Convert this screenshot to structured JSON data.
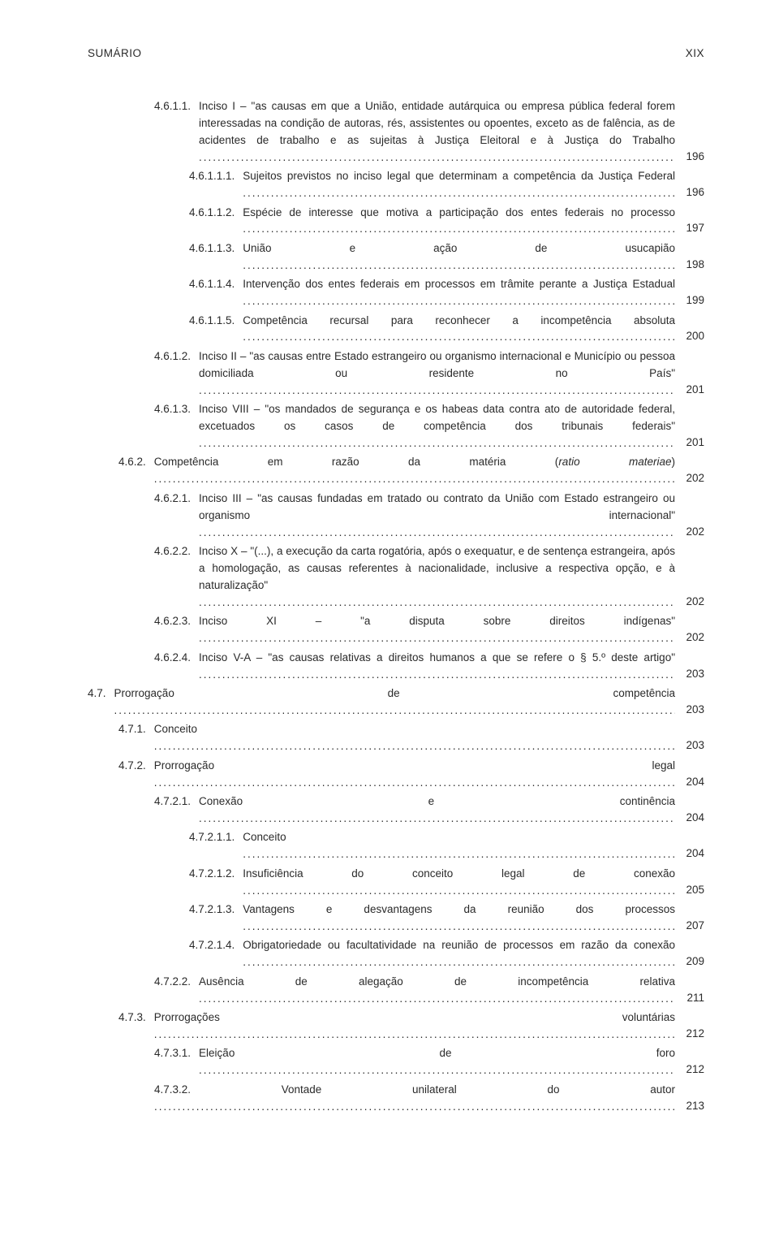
{
  "header": {
    "left": "SUMÁRIO",
    "right": "XIX"
  },
  "entries": [
    {
      "level": 3,
      "num": "4.6.1.1.",
      "text": "Inciso I – \"as causas em que a União, entidade autárquica ou empresa pública federal forem interessadas na condição de autoras, rés, assistentes ou opoentes, exceto as de falência, as de acidentes de trabalho e as sujeitas à Justiça Eleitoral e à Justiça do Trabalho",
      "tail": "",
      "page": "196"
    },
    {
      "level": 4,
      "num": "4.6.1.1.1.",
      "text": "Sujeitos previstos no inciso legal que determinam a competência da Justiça Federal",
      "tail": "",
      "page": "196"
    },
    {
      "level": 4,
      "num": "4.6.1.1.2.",
      "text": "Espécie de interesse que motiva a participação dos entes federais no processo",
      "tail": "",
      "page": "197"
    },
    {
      "level": 4,
      "num": "4.6.1.1.3.",
      "text": "União e ação de usucapião",
      "tail": "",
      "page": "198"
    },
    {
      "level": 4,
      "num": "4.6.1.1.4.",
      "text": "Intervenção dos entes federais em processos em trâmite perante a Justiça Estadual",
      "tail": "",
      "page": "199"
    },
    {
      "level": 4,
      "num": "4.6.1.1.5.",
      "text": "Competência recursal para reconhecer a incompetência absoluta ",
      "tail": "",
      "page": "200"
    },
    {
      "level": 3,
      "num": "4.6.1.2.",
      "text": "Inciso II – \"as causas entre Estado estrangeiro ou organismo internacional e Município ou pessoa domiciliada ou residente no País\"",
      "tail": "",
      "page": "201"
    },
    {
      "level": 3,
      "num": "4.6.1.3.",
      "text": "Inciso VIII – \"os mandados de segurança e os habeas data contra ato de autoridade federal, excetuados os casos de competência dos tribunais federais\"",
      "tail": "",
      "page": "201"
    },
    {
      "level": 2,
      "num": "4.6.2.",
      "text": "Competência em razão da matéria (",
      "italic": "ratio materiae",
      "tail": ")",
      "page": "202"
    },
    {
      "level": 3,
      "num": "4.6.2.1.",
      "text": "Inciso III – \"as causas fundadas em tratado ou contrato da União com Estado estrangeiro ou organismo internacional\"",
      "tail": "",
      "page": "202"
    },
    {
      "level": 3,
      "num": "4.6.2.2.",
      "text": "Inciso X – \"(...), a execução da carta rogatória, após o exequatur, e de sentença estrangeira, após a homologação, as causas referentes à nacionalidade, inclusive a respectiva opção, e à naturalização\"",
      "tail": "",
      "page": "202"
    },
    {
      "level": 3,
      "num": "4.6.2.3.",
      "text": "Inciso XI – \"a disputa sobre direitos indígenas\" ",
      "tail": "",
      "page": "202"
    },
    {
      "level": 3,
      "num": "4.6.2.4.",
      "text": "Inciso V-A – \"as causas relativas a direitos humanos a que se refere o § 5.º deste artigo\"",
      "tail": "",
      "page": "203"
    },
    {
      "level": 1,
      "num": "4.7.",
      "text": "Prorrogação de competência",
      "tail": "",
      "page": "203"
    },
    {
      "level": 2,
      "num": "4.7.1.",
      "text": "Conceito",
      "tail": "",
      "page": "203"
    },
    {
      "level": 2,
      "num": "4.7.2.",
      "text": "Prorrogação legal",
      "tail": "",
      "page": "204"
    },
    {
      "level": 3,
      "num": "4.7.2.1.",
      "text": "Conexão e continência",
      "tail": "",
      "page": "204"
    },
    {
      "level": 4,
      "num": "4.7.2.1.1.",
      "text": "Conceito",
      "tail": "",
      "page": "204"
    },
    {
      "level": 4,
      "num": "4.7.2.1.2.",
      "text": "Insuficiência do conceito legal de conexão ",
      "tail": "",
      "page": "205"
    },
    {
      "level": 4,
      "num": "4.7.2.1.3.",
      "text": "Vantagens e desvantagens da reunião dos processos ",
      "tail": "",
      "page": "207"
    },
    {
      "level": 4,
      "num": "4.7.2.1.4.",
      "text": "Obrigatoriedade ou facultatividade na reunião de processos em razão da conexão",
      "tail": "",
      "page": "209"
    },
    {
      "level": 3,
      "num": "4.7.2.2.",
      "text": "Ausência de alegação de incompetência relativa ",
      "tail": "",
      "page": "211"
    },
    {
      "level": 2,
      "num": "4.7.3.",
      "text": "Prorrogações voluntárias",
      "tail": "",
      "page": "212"
    },
    {
      "level": 3,
      "num": "4.7.3.1.",
      "text": "Eleição de foro",
      "tail": "",
      "page": "212"
    },
    {
      "level": 3,
      "num": "",
      "text": "4.7.3.2. Vontade unilateral do autor ",
      "tail": "",
      "page": "213"
    }
  ]
}
